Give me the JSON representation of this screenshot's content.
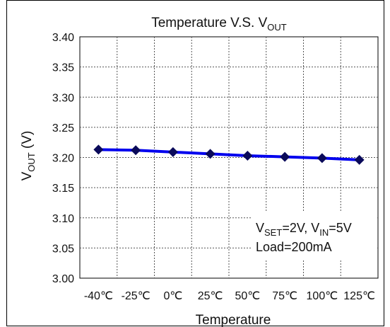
{
  "chart_data": {
    "type": "line",
    "title": {
      "main": "Temperature V.S. V",
      "sub": "OUT"
    },
    "xlabel": "Temperature",
    "ylabel": {
      "main": "V",
      "sub": "OUT",
      "unit": " (V)"
    },
    "categories": [
      "-40℃",
      "-25℃",
      "0℃",
      "25℃",
      "50℃",
      "75℃",
      "100℃",
      "125℃"
    ],
    "ylim": [
      3.0,
      3.4
    ],
    "yticks": [
      "3.00",
      "3.05",
      "3.10",
      "3.15",
      "3.20",
      "3.25",
      "3.30",
      "3.35",
      "3.40"
    ],
    "grid": true,
    "series": [
      {
        "values": [
          3.213,
          3.212,
          3.209,
          3.206,
          3.203,
          3.201,
          3.199,
          3.196
        ],
        "color": "#0000ee",
        "marker": "diamond",
        "marker_color": "#0a0a5a"
      }
    ],
    "annotation": {
      "line1": [
        {
          "text": "V",
          "sub": false
        },
        {
          "text": "SET",
          "sub": true
        },
        {
          "text": "=2V, V",
          "sub": false
        },
        {
          "text": "IN",
          "sub": true
        },
        {
          "text": "=5V",
          "sub": false
        }
      ],
      "line2": "Load=200mA"
    }
  }
}
